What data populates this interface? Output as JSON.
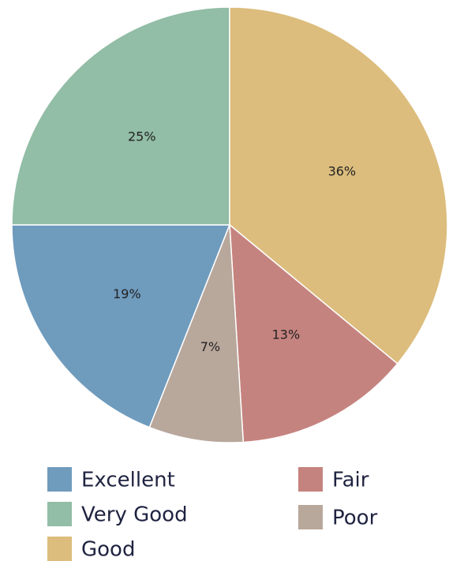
{
  "chart_data": {
    "type": "pie",
    "categories": [
      "Excellent",
      "Very Good",
      "Good",
      "Fair",
      "Poor"
    ],
    "values": [
      19,
      25,
      36,
      13,
      7
    ],
    "value_labels": [
      "19%",
      "25%",
      "36%",
      "13%",
      "7%"
    ],
    "colors": [
      "#6f9bbd",
      "#92bda6",
      "#dcbd7d",
      "#c5837f",
      "#b8a79b"
    ]
  }
}
